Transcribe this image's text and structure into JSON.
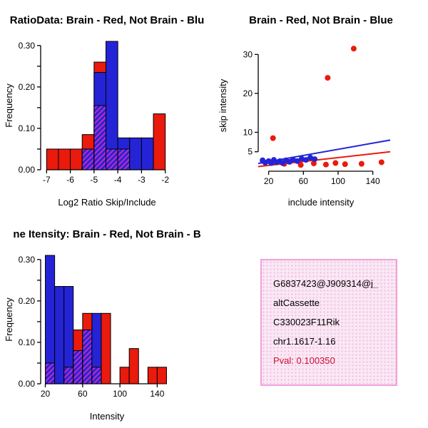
{
  "figure": {
    "background": "#FFFFFF"
  },
  "chart_data": [
    {
      "type": "bar",
      "subtype": "overlaid-histogram",
      "title": "RatioData: Brain - Red, Not Brain - Blu",
      "xlabel": "Log2 Ratio Skip/Include",
      "ylabel": "Frequency",
      "xlim": [
        -7.25,
        -1.75
      ],
      "ylim": [
        0,
        0.31
      ],
      "grid": false,
      "xticks": [
        {
          "v": -7,
          "label": "-7"
        },
        {
          "v": -6,
          "label": "-6"
        },
        {
          "v": -5,
          "label": "-5"
        },
        {
          "v": -4,
          "label": "-4"
        },
        {
          "v": -3,
          "label": "-3"
        },
        {
          "v": -2,
          "label": "-2"
        }
      ],
      "yticks": [
        {
          "v": 0.0,
          "label": "0.00"
        },
        {
          "v": 0.05,
          "label": ""
        },
        {
          "v": 0.1,
          "label": "0.10"
        },
        {
          "v": 0.15,
          "label": ""
        },
        {
          "v": 0.2,
          "label": "0.20"
        },
        {
          "v": 0.25,
          "label": ""
        },
        {
          "v": 0.3,
          "label": "0.30"
        }
      ],
      "bin_edges": [
        -7,
        -6.5,
        -6,
        -5.5,
        -5,
        -4.5,
        -4,
        -3.5,
        -3,
        -2.5,
        -2
      ],
      "series": {
        "red": [
          0.05,
          0.05,
          0.05,
          0.085,
          0.26,
          0.05,
          0.05,
          0,
          0,
          0.135
        ],
        "blue": [
          0,
          0,
          0,
          0.05,
          0.235,
          0.31,
          0.077,
          0.077,
          0.077,
          0
        ],
        "overlap": [
          0,
          0,
          0,
          0.05,
          0.155,
          0.05,
          0.05,
          0,
          0,
          0
        ]
      },
      "colors": {
        "red": "#ea1a0c",
        "blue": "#2424d6",
        "overlap_hatch": "#c128c1"
      }
    },
    {
      "type": "scatter",
      "title": "Brain - Red, Not Brain - Blue",
      "xlabel": "include intensity",
      "ylabel": "skip intensity",
      "xlim": [
        8,
        160
      ],
      "ylim": [
        0,
        33
      ],
      "grid": false,
      "xticks": [
        {
          "v": 20,
          "label": "20"
        },
        {
          "v": 60,
          "label": "60"
        },
        {
          "v": 100,
          "label": "100"
        },
        {
          "v": 140,
          "label": "140"
        }
      ],
      "yticks": [
        {
          "v": 5,
          "label": "5"
        },
        {
          "v": 10,
          "label": "10"
        },
        {
          "v": 20,
          "label": "20"
        },
        {
          "v": 30,
          "label": "30"
        }
      ],
      "series": [
        {
          "color": "red",
          "points": [
            [
              25,
              8.5
            ],
            [
              88,
              24
            ],
            [
              118,
              31.5
            ],
            [
              38,
              1.9
            ],
            [
              57,
              1.6
            ],
            [
              72,
              2.0
            ],
            [
              86,
              1.7
            ],
            [
              97,
              2.1
            ],
            [
              108,
              1.8
            ],
            [
              127,
              1.9
            ],
            [
              150,
              2.3
            ]
          ]
        },
        {
          "color": "blue",
          "points": [
            [
              13,
              2.8
            ],
            [
              16,
              2.2
            ],
            [
              20,
              2.6
            ],
            [
              23,
              2.1
            ],
            [
              26,
              2.9
            ],
            [
              29,
              2.3
            ],
            [
              33,
              2.6
            ],
            [
              36,
              2.1
            ],
            [
              40,
              2.8
            ],
            [
              44,
              2.4
            ],
            [
              48,
              3.0
            ],
            [
              53,
              2.6
            ],
            [
              58,
              3.2
            ],
            [
              63,
              2.9
            ],
            [
              68,
              3.5
            ],
            [
              73,
              3.1
            ]
          ]
        }
      ],
      "lines": [
        {
          "color": "red",
          "x1": 8,
          "y1": 1.2,
          "x2": 160,
          "y2": 5.0
        },
        {
          "color": "blue",
          "x1": 8,
          "y1": 2.0,
          "x2": 160,
          "y2": 8.0
        }
      ],
      "colors": {
        "red": "#ea1a0c",
        "blue": "#2424d6"
      }
    },
    {
      "type": "bar",
      "subtype": "overlaid-histogram",
      "title": "ne Itensity: Brain - Red, Not Brain - B",
      "xlabel": "Intensity",
      "ylabel": "Frequency",
      "xlim": [
        15,
        155
      ],
      "ylim": [
        0,
        0.31
      ],
      "grid": false,
      "xticks": [
        {
          "v": 20,
          "label": "20"
        },
        {
          "v": 60,
          "label": "60"
        },
        {
          "v": 100,
          "label": "100"
        },
        {
          "v": 140,
          "label": "140"
        }
      ],
      "yticks": [
        {
          "v": 0.0,
          "label": "0.00"
        },
        {
          "v": 0.05,
          "label": ""
        },
        {
          "v": 0.1,
          "label": "0.10"
        },
        {
          "v": 0.15,
          "label": ""
        },
        {
          "v": 0.2,
          "label": "0.20"
        },
        {
          "v": 0.25,
          "label": ""
        },
        {
          "v": 0.3,
          "label": "0.30"
        }
      ],
      "bin_edges": [
        20,
        30,
        40,
        50,
        60,
        70,
        80,
        90,
        100,
        110,
        120,
        130,
        140,
        150
      ],
      "series": {
        "red": [
          0.05,
          0,
          0.04,
          0.13,
          0.17,
          0.04,
          0.17,
          0,
          0.04,
          0.085,
          0,
          0.04,
          0.04
        ],
        "blue": [
          0.31,
          0.235,
          0.235,
          0.08,
          0.13,
          0.17,
          0,
          0,
          0,
          0,
          0,
          0,
          0
        ],
        "overlap": [
          0.05,
          0,
          0.04,
          0.08,
          0.13,
          0.04,
          0,
          0,
          0,
          0,
          0,
          0,
          0
        ]
      },
      "colors": {
        "red": "#ea1a0c",
        "blue": "#2424d6",
        "overlap_hatch": "#c128c1"
      }
    }
  ],
  "info_box": {
    "background": "#fae7f4",
    "border_color": "#f2a0dc",
    "lines": [
      {
        "text": "G6837423@J909314@j_",
        "color": "#000000"
      },
      {
        "text": "altCassette",
        "color": "#000000"
      },
      {
        "text": "C330023F11Rik",
        "color": "#000000"
      },
      {
        "text": "chr1.1617-1.16",
        "color": "#000000"
      },
      {
        "text": "Pval: 0.100350",
        "color": "#cc1133"
      }
    ]
  }
}
